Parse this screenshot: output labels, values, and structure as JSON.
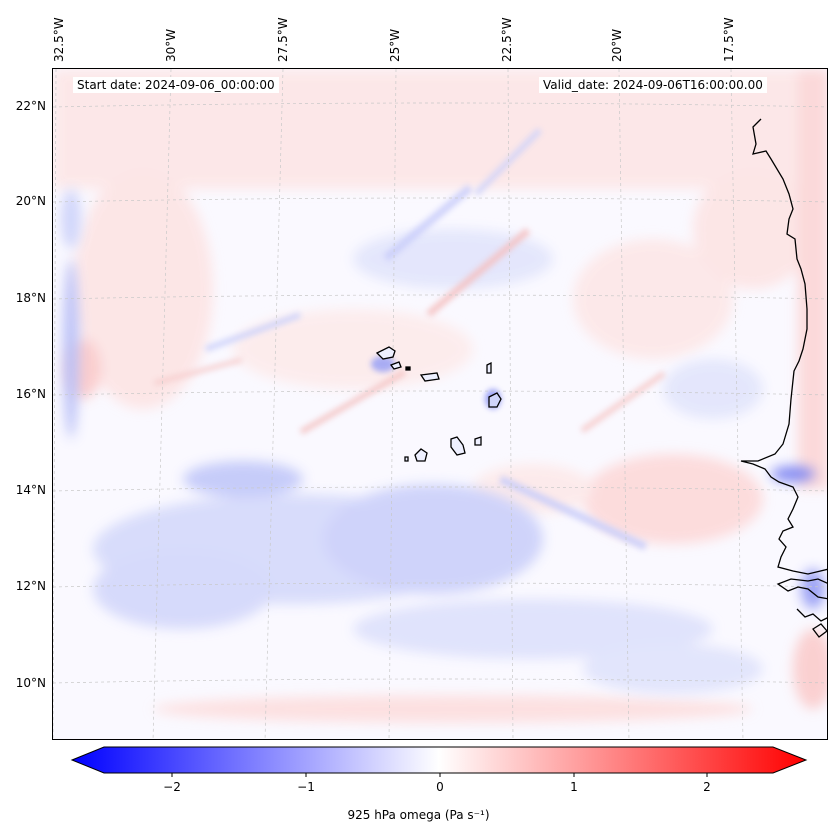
{
  "info": {
    "start_date": "Start date: 2024-09-06_00:00:00",
    "valid_date": "Valid_date: 2024-09-06T16:00:00.00"
  },
  "axes": {
    "lon_labels": [
      "32.5°W",
      "30°W",
      "27.5°W",
      "25°W",
      "22.5°W",
      "20°W",
      "17.5°W"
    ],
    "lat_labels": [
      "22°N",
      "20°N",
      "18°N",
      "16°N",
      "14°N",
      "12°N",
      "10°N"
    ]
  },
  "colorbar": {
    "label": "925 hPa omega (Pa s⁻¹)",
    "ticks": [
      "−2",
      "−1",
      "0",
      "1",
      "2"
    ],
    "colormap": "bwr",
    "range": [
      -2.5,
      2.5
    ],
    "extend": "both"
  },
  "colors": {
    "negative": "#0000ff",
    "positive": "#ff0000",
    "neutral": "#ffffff",
    "coastline": "#000000"
  }
}
